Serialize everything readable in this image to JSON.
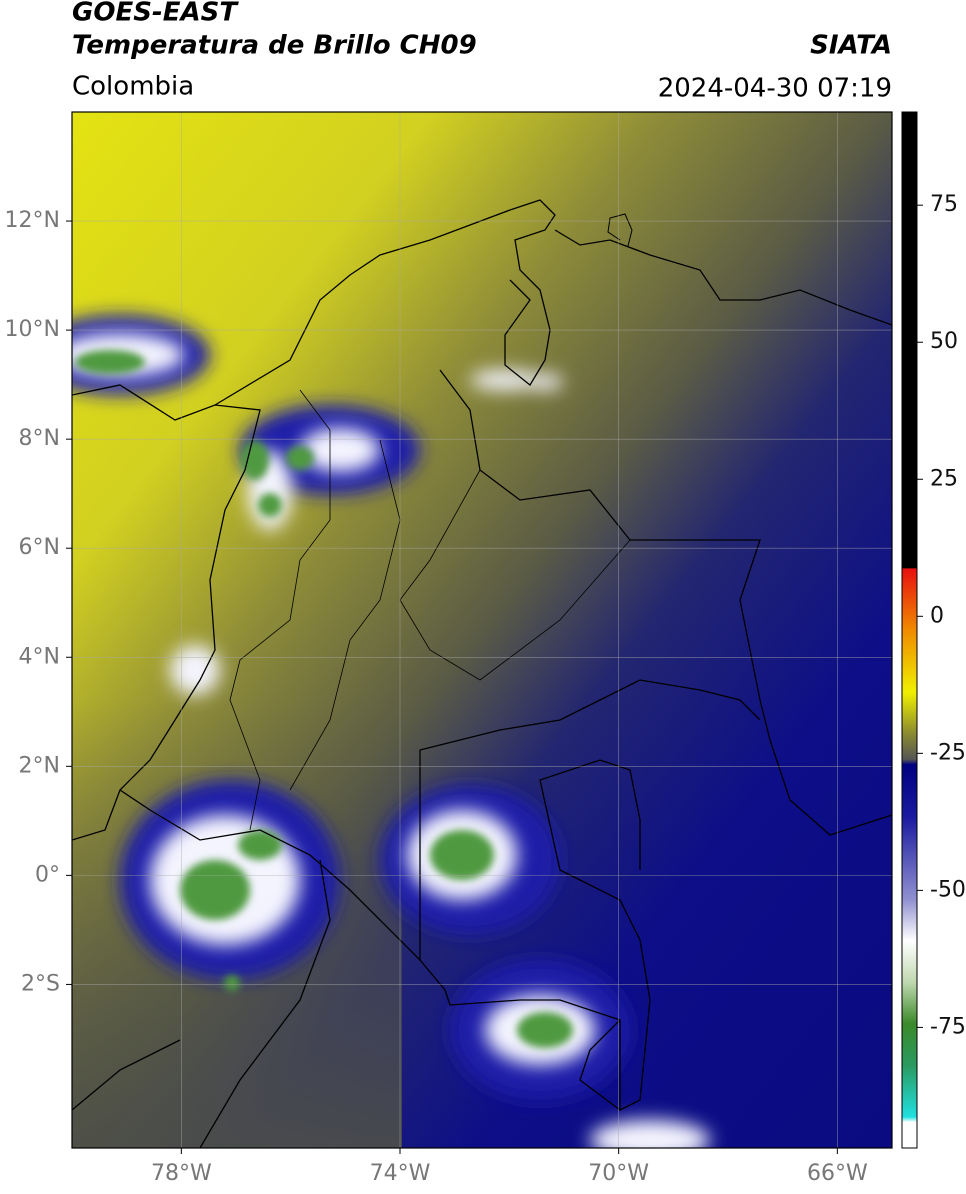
{
  "header": {
    "title": "GOES-EAST",
    "subtitle": "Temperatura de Brillo CH09",
    "source": "SIATA",
    "region": "Colombia",
    "timestamp": "2024-04-30 07:19"
  },
  "map": {
    "xlim": [
      -80,
      -65
    ],
    "ylim": [
      -5,
      14
    ],
    "xticks": [
      {
        "value": -78,
        "label": "78°W"
      },
      {
        "value": -74,
        "label": "74°W"
      },
      {
        "value": -70,
        "label": "70°W"
      },
      {
        "value": -66,
        "label": "66°W"
      }
    ],
    "yticks": [
      {
        "value": 12,
        "label": "12°N"
      },
      {
        "value": 10,
        "label": "10°N"
      },
      {
        "value": 8,
        "label": "8°N"
      },
      {
        "value": 6,
        "label": "6°N"
      },
      {
        "value": 4,
        "label": "4°N"
      },
      {
        "value": 2,
        "label": "2°N"
      },
      {
        "value": 0,
        "label": "0°"
      },
      {
        "value": -2,
        "label": "2°S"
      }
    ],
    "grid": true
  },
  "colorbar": {
    "lim": [
      -97,
      92
    ],
    "ticks": [
      75,
      50,
      25,
      0,
      -25,
      -50,
      -75
    ]
  }
}
